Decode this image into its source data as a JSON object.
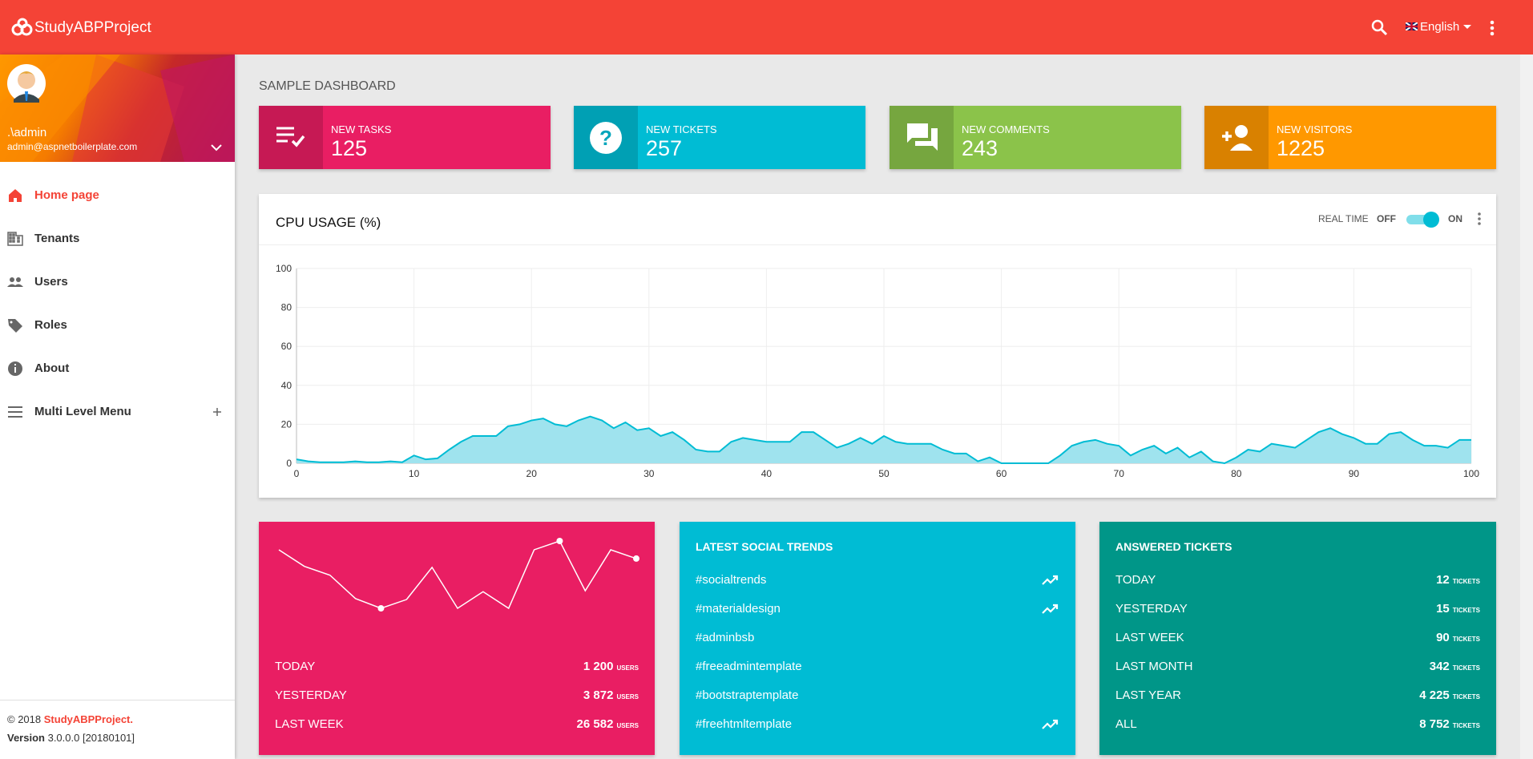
{
  "header": {
    "brand": "StudyABPProject",
    "language": "English"
  },
  "sidebar": {
    "user_name": ".\\admin",
    "user_email": "admin@aspnetboilerplate.com",
    "menu": [
      "Home page",
      "Tenants",
      "Users",
      "Roles",
      "About",
      "Multi Level Menu"
    ],
    "footer": {
      "copyright": "© 2018",
      "brand": "StudyABPProject.",
      "version_label": "Version",
      "version": "3.0.0.0 [20180101]"
    }
  },
  "dashboard": {
    "title": "SAMPLE DASHBOARD",
    "info_boxes": [
      {
        "label": "NEW TASKS",
        "value": 125,
        "color": "#e91e63"
      },
      {
        "label": "NEW TICKETS",
        "value": 257,
        "color": "#00bcd4"
      },
      {
        "label": "NEW COMMENTS",
        "value": 243,
        "color": "#8bc34a"
      },
      {
        "label": "NEW VISITORS",
        "value": 1225,
        "color": "#ff9800"
      }
    ],
    "cpu_controls": {
      "label": "REAL TIME",
      "off": "OFF",
      "on": "ON"
    },
    "users_card": {
      "color": "#e91e63",
      "rows": [
        {
          "label": "TODAY",
          "value": "1 200",
          "unit": "USERS"
        },
        {
          "label": "YESTERDAY",
          "value": "3 872",
          "unit": "USERS"
        },
        {
          "label": "LAST WEEK",
          "value": "26 582",
          "unit": "USERS"
        }
      ]
    },
    "social_card": {
      "title": "LATEST SOCIAL TRENDS",
      "color": "#00bcd4",
      "items": [
        {
          "tag": "#socialtrends",
          "trending": true
        },
        {
          "tag": "#materialdesign",
          "trending": true
        },
        {
          "tag": "#adminbsb",
          "trending": false
        },
        {
          "tag": "#freeadmintemplate",
          "trending": false
        },
        {
          "tag": "#bootstraptemplate",
          "trending": false
        },
        {
          "tag": "#freehtmltemplate",
          "trending": true
        }
      ]
    },
    "tickets_card": {
      "title": "ANSWERED TICKETS",
      "color": "#009688",
      "rows": [
        {
          "label": "TODAY",
          "value": "12",
          "unit": "TICKETS"
        },
        {
          "label": "YESTERDAY",
          "value": "15",
          "unit": "TICKETS"
        },
        {
          "label": "LAST WEEK",
          "value": "90",
          "unit": "TICKETS"
        },
        {
          "label": "LAST MONTH",
          "value": "342",
          "unit": "TICKETS"
        },
        {
          "label": "LAST YEAR",
          "value": "4 225",
          "unit": "TICKETS"
        },
        {
          "label": "ALL",
          "value": "8 752",
          "unit": "TICKETS"
        }
      ]
    }
  },
  "chart_data": [
    {
      "type": "line",
      "title": "CPU USAGE (%)",
      "color": "#00bcd4",
      "fill": "#9fe3ee",
      "grid": true,
      "x": [
        0,
        1,
        2,
        3,
        4,
        5,
        6,
        7,
        8,
        9,
        10,
        11,
        12,
        13,
        14,
        15,
        16,
        17,
        18,
        19,
        20,
        21,
        22,
        23,
        24,
        25,
        26,
        27,
        28,
        29,
        30,
        31,
        32,
        33,
        34,
        35,
        36,
        37,
        38,
        39,
        40,
        41,
        42,
        43,
        44,
        45,
        46,
        47,
        48,
        49,
        50,
        51,
        52,
        53,
        54,
        55,
        56,
        57,
        58,
        59,
        60,
        61,
        62,
        63,
        64,
        65,
        66,
        67,
        68,
        69,
        70,
        71,
        72,
        73,
        74,
        75,
        76,
        77,
        78,
        79,
        80,
        81,
        82,
        83,
        84,
        85,
        86,
        87,
        88,
        89,
        90,
        91,
        92,
        93,
        94,
        95,
        96,
        97,
        98,
        99,
        100
      ],
      "values": [
        2,
        1,
        0.5,
        0.5,
        0.5,
        1,
        0.5,
        0.5,
        1,
        0.5,
        4,
        2,
        2.5,
        7,
        11,
        14,
        14,
        14,
        19,
        20,
        22,
        23,
        20,
        19,
        22,
        24,
        22,
        18,
        21,
        17,
        18,
        14,
        16,
        12,
        7,
        6,
        6,
        11,
        13,
        12,
        11,
        11,
        11,
        16,
        16,
        12,
        8,
        10,
        13,
        10,
        14,
        11,
        10,
        10,
        10,
        7,
        5,
        5,
        1,
        3,
        0,
        0,
        0,
        0,
        0,
        4,
        9,
        11,
        12,
        10,
        9,
        4,
        7,
        9,
        5,
        8,
        3,
        6,
        1,
        0,
        3,
        7,
        6,
        10,
        9,
        8,
        12,
        16,
        18,
        15,
        13,
        10,
        10,
        15,
        16,
        12,
        9,
        9,
        8,
        12,
        12
      ],
      "xlim": [
        0,
        100
      ],
      "xticks": [
        0,
        10,
        20,
        30,
        40,
        50,
        60,
        70,
        80,
        90,
        100
      ],
      "ylim": [
        0,
        100
      ],
      "yticks": [
        0,
        20,
        40,
        60,
        80,
        100
      ]
    },
    {
      "type": "line",
      "color": "#ffffff",
      "values": [
        88,
        71,
        62,
        38,
        28,
        37,
        70,
        28,
        45,
        28,
        88,
        97,
        46,
        88,
        79
      ],
      "marker_indices": [
        4,
        11,
        14
      ]
    }
  ]
}
